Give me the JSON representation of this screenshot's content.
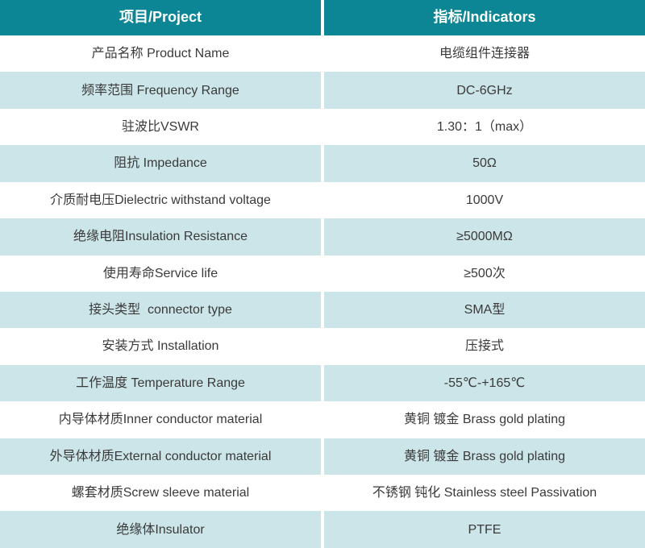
{
  "table": {
    "header": {
      "project": "项目/Project",
      "indicator": "指标/Indicators"
    },
    "rows": [
      {
        "project": "产品名称 Product Name",
        "indicator": "电缆组件连接器"
      },
      {
        "project": "频率范围 Frequency Range",
        "indicator": "DC-6GHz"
      },
      {
        "project": "驻波比VSWR",
        "indicator": "1.30：1（max）"
      },
      {
        "project": "阻抗 Impedance",
        "indicator": "50Ω"
      },
      {
        "project": "介质耐电压Dielectric withstand voltage",
        "indicator": "1000V"
      },
      {
        "project": "绝缘电阻Insulation Resistance",
        "indicator": "≥5000MΩ"
      },
      {
        "project": "使用寿命Service life",
        "indicator": "≥500次"
      },
      {
        "project": "接头类型  connector type",
        "indicator": "SMA型"
      },
      {
        "project": "安装方式 Installation",
        "indicator": "压接式"
      },
      {
        "project": "工作温度 Temperature Range",
        "indicator": "-55℃-+165℃"
      },
      {
        "project": "内导体材质Inner conductor material",
        "indicator": "黄铜 镀金 Brass gold plating"
      },
      {
        "project": "外导体材质External conductor material",
        "indicator": "黄铜 镀金 Brass gold plating"
      },
      {
        "project": "螺套材质Screw sleeve material",
        "indicator": "不锈钢 钝化 Stainless steel Passivation"
      },
      {
        "project": "绝缘体Insulator",
        "indicator": "PTFE"
      }
    ],
    "colors": {
      "header_bg": "#0c8695",
      "row_bg": "#ffffff",
      "row_alt_bg": "#cce5e9",
      "header_text": "#ffffff",
      "text": "#3a3a3a"
    }
  }
}
